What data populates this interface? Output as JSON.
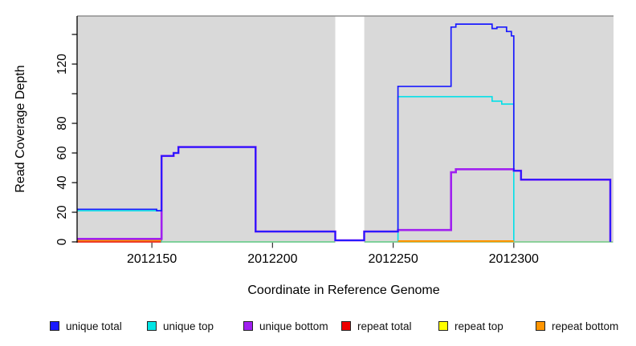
{
  "figure": {
    "kind": "read-coverage-step-plot",
    "title": ""
  },
  "chart_data": {
    "type": "line",
    "subtype": "step-coverage",
    "title": "",
    "xlabel": "Coordinate in Reference Genome",
    "ylabel": "Read Coverage Depth",
    "xlim": [
      2012119,
      2012341
    ],
    "ylim": [
      0,
      152
    ],
    "grid": false,
    "legend_position": "bottom",
    "plot_bg": "#d9d9d9",
    "frame_color": "#8f8f8f",
    "axis_color": "#000000",
    "x_ticks": [
      {
        "v": 2012150,
        "label": "2012150"
      },
      {
        "v": 2012200,
        "label": "2012200"
      },
      {
        "v": 2012250,
        "label": "2012250"
      },
      {
        "v": 2012300,
        "label": "2012300"
      }
    ],
    "y_ticks": [
      {
        "v": 0,
        "label": "0"
      },
      {
        "v": 20,
        "label": "20"
      },
      {
        "v": 40,
        "label": "40"
      },
      {
        "v": 60,
        "label": "60"
      },
      {
        "v": 80,
        "label": "80"
      },
      {
        "v": 100,
        "label": ""
      },
      {
        "v": 120,
        "label": "120"
      },
      {
        "v": 140,
        "label": ""
      }
    ],
    "masked_region": {
      "x0": 2012226,
      "x1": 2012238,
      "color": "#ffffff",
      "note": "white vertical band masking the plot"
    },
    "baseline_blend": {
      "color": "#81ce90",
      "value": 0,
      "x0": 2012154,
      "x1": 2012341,
      "note": "unique top (cyan) and repeat top (yellow) both at depth 0 render as a blended green baseline"
    },
    "series": [
      {
        "name": "unique total",
        "color": "#1a1aff",
        "lw": 1.7,
        "segments": [
          [
            [
              2012119,
              22
            ],
            [
              2012152,
              21
            ],
            [
              2012154,
              58
            ],
            [
              2012159,
              60
            ],
            [
              2012161,
              64
            ],
            [
              2012193,
              7
            ],
            [
              2012226,
              1
            ],
            [
              2012238,
              7
            ],
            [
              2012252,
              105
            ],
            [
              2012274,
              145
            ],
            [
              2012276,
              147
            ],
            [
              2012291,
              144
            ],
            [
              2012293,
              145
            ],
            [
              2012297,
              142
            ],
            [
              2012299,
              139
            ],
            [
              2012300,
              48
            ],
            [
              2012303,
              42
            ],
            [
              2012340,
              0
            ]
          ]
        ]
      },
      {
        "name": "unique top",
        "color": "#00e0e8",
        "lw": 1.6,
        "segments": [
          [
            [
              2012119,
              21
            ],
            [
              2012154,
              0
            ],
            [
              2012252,
              98
            ],
            [
              2012291,
              95
            ],
            [
              2012295,
              93
            ],
            [
              2012300,
              0
            ]
          ]
        ]
      },
      {
        "name": "unique bottom",
        "color": "#a020f0",
        "lw": 2.6,
        "segments": [
          [
            [
              2012119,
              2
            ],
            [
              2012154,
              58
            ],
            [
              2012159,
              60
            ],
            [
              2012161,
              64
            ],
            [
              2012193,
              7
            ],
            [
              2012226,
              1
            ],
            [
              2012238,
              7
            ],
            [
              2012252,
              8
            ],
            [
              2012274,
              47
            ],
            [
              2012276,
              49
            ],
            [
              2012300,
              48
            ],
            [
              2012303,
              42
            ],
            [
              2012340,
              0
            ]
          ]
        ]
      },
      {
        "name": "repeat total",
        "color": "#ee0000",
        "lw": 1.5,
        "segments": [
          [
            [
              2012119,
              0
            ],
            [
              2012154,
              0
            ]
          ]
        ]
      },
      {
        "name": "repeat top",
        "color": "#ffff00",
        "lw": 1.5,
        "segments": [],
        "note": "depth 0 throughout; visually merged into green baseline"
      },
      {
        "name": "repeat bottom",
        "color": "#ff9500",
        "lw": 2.2,
        "segments": [
          [
            [
              2012119,
              1
            ],
            [
              2012154,
              1
            ]
          ],
          [
            [
              2012252,
              0.5
            ],
            [
              2012300,
              0.5
            ]
          ]
        ]
      }
    ],
    "draw_order": [
      "repeat total",
      "repeat top",
      "unique top",
      "__baseline_blend__",
      "repeat bottom",
      "__mask__",
      "__frame__",
      "unique bottom",
      "unique total"
    ]
  },
  "legend": {
    "items": [
      {
        "label": "unique total",
        "color": "#1a1aff"
      },
      {
        "label": "unique top",
        "color": "#00e5e5"
      },
      {
        "label": "unique bottom",
        "color": "#a020f0"
      },
      {
        "label": "repeat total",
        "color": "#ee0000"
      },
      {
        "label": "repeat top",
        "color": "#ffff00"
      },
      {
        "label": "repeat bottom",
        "color": "#ff9500"
      }
    ]
  }
}
